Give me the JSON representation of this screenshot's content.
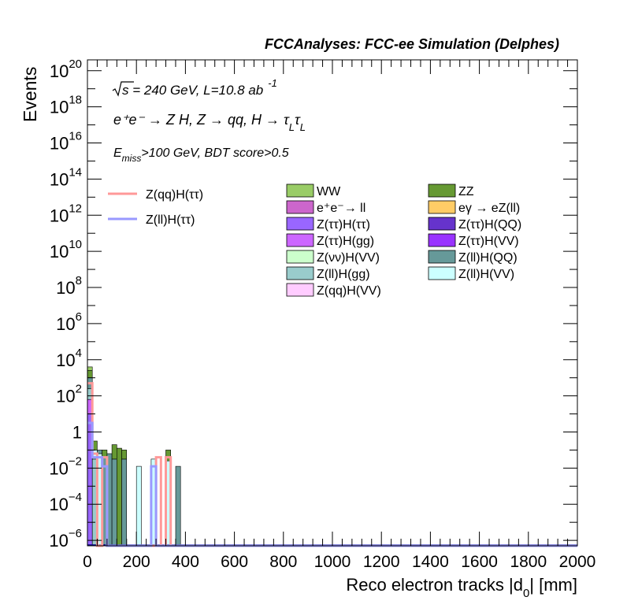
{
  "chart_data": {
    "type": "bar",
    "title": "FCCAnalyses: FCC-ee Simulation (Delphes)",
    "xlabel": "Reco electron tracks |d0| [mm]",
    "xlabel_main": "Reco electron tracks |d",
    "xlabel_sub": "0",
    "xlabel_tail": "| [mm]",
    "ylabel": "Events",
    "xlim": [
      0,
      2000
    ],
    "ylim_log10": [
      -6.3,
      20.6
    ],
    "log_y": true,
    "x_ticks": [
      0,
      200,
      400,
      600,
      800,
      1000,
      1200,
      1400,
      1600,
      1800,
      2000
    ],
    "y_ticks_exp": [
      -6,
      -4,
      -2,
      0,
      2,
      4,
      6,
      8,
      10,
      12,
      14,
      16,
      18,
      20
    ],
    "y_tick_labels": {
      "-6": "10",
      "-4": "10",
      "-2": "10",
      "0": "1",
      "2": "10",
      "4": "10",
      "6": "10",
      "8": "10",
      "10": "10",
      "12": "10",
      "14": "10",
      "16": "10",
      "18": "10",
      "20": "10"
    },
    "y_tick_exps": {
      "-6": "−6",
      "-4": "−4",
      "-2": "−2",
      "0": "",
      "2": "2",
      "4": "4",
      "6": "6",
      "8": "8",
      "10": "10",
      "12": "12",
      "14": "14",
      "16": "16",
      "18": "18",
      "20": "20"
    },
    "annotations": {
      "energy_line_a": "s = 240 GeV, L=10.8 ab",
      "energy_line_b": "-1",
      "process": "e⁺e⁻ → Z H, Z → qq, H → τ",
      "process_sub1": "L",
      "process_tau": "τ",
      "process_sub2": "L",
      "cut_pre": "E",
      "cut_sub": "miss",
      "cut_post": ">100 GeV, BDT score>0.5"
    },
    "legend_signal": [
      {
        "name": "Z(qq)H(ττ)",
        "color": "#ff9999"
      },
      {
        "name": "Z(ll)H(ττ)",
        "color": "#9999ff"
      }
    ],
    "legend_background": [
      {
        "name": "WW",
        "color": "#99cc66"
      },
      {
        "name": "ZZ",
        "color": "#669933"
      },
      {
        "name": "e⁺e⁻→ ll",
        "color": "#cc66cc"
      },
      {
        "name": "eγ → eZ(ll)",
        "color": "#ffcc66"
      },
      {
        "name": "Z(ττ)H(ττ)",
        "color": "#9966ff"
      },
      {
        "name": "Z(ττ)H(QQ)",
        "color": "#6633cc"
      },
      {
        "name": "Z(ττ)H(gg)",
        "color": "#cc66ff"
      },
      {
        "name": "Z(ττ)H(VV)",
        "color": "#9933ff"
      },
      {
        "name": "Z(νν)H(VV)",
        "color": "#ccffcc"
      },
      {
        "name": "Z(ll)H(QQ)",
        "color": "#669999"
      },
      {
        "name": "Z(ll)H(gg)",
        "color": "#99cccc"
      },
      {
        "name": "Z(ll)H(VV)",
        "color": "#ccffff"
      },
      {
        "name": "Z(qq)H(VV)",
        "color": "#ffccff"
      }
    ],
    "bin_width": 20,
    "stack_bins": [
      {
        "x": 0,
        "layers": [
          {
            "color": "#9966ff",
            "top": 1.0
          },
          {
            "color": "#cc66ff",
            "top": 1.8
          },
          {
            "color": "#99cccc",
            "top": 2.4
          },
          {
            "color": "#669999",
            "top": 3.0
          },
          {
            "color": "#669933",
            "top": 3.4
          },
          {
            "color": "#99cc66",
            "top": 3.6
          }
        ]
      },
      {
        "x": 20,
        "layers": [
          {
            "color": "#99cccc",
            "top": -1.5
          },
          {
            "color": "#ccffff",
            "top": -1.0
          },
          {
            "color": "#669933",
            "top": -0.5
          }
        ]
      },
      {
        "x": 40,
        "layers": [
          {
            "color": "#ccffff",
            "top": -1.2
          },
          {
            "color": "#669999",
            "top": -1.0
          }
        ]
      },
      {
        "x": 60,
        "layers": [
          {
            "color": "#669999",
            "top": -1.4
          },
          {
            "color": "#669933",
            "top": -1.0
          }
        ]
      },
      {
        "x": 80,
        "layers": [
          {
            "color": "#669999",
            "top": -1.2
          }
        ]
      },
      {
        "x": 100,
        "layers": [
          {
            "color": "#669999",
            "top": -1.5
          },
          {
            "color": "#669933",
            "top": -0.7
          }
        ]
      },
      {
        "x": 120,
        "layers": [
          {
            "color": "#669933",
            "top": -0.9
          }
        ]
      },
      {
        "x": 140,
        "layers": [
          {
            "color": "#669999",
            "top": -1.5
          },
          {
            "color": "#669933",
            "top": -1.0
          }
        ]
      },
      {
        "x": 200,
        "layers": [
          {
            "color": "#ccffff",
            "top": -1.9
          }
        ]
      },
      {
        "x": 260,
        "layers": [
          {
            "color": "#ccffff",
            "top": -1.5
          }
        ]
      },
      {
        "x": 320,
        "layers": [
          {
            "color": "#ccffff",
            "top": -1.6
          },
          {
            "color": "#669933",
            "top": -1.0
          }
        ]
      },
      {
        "x": 360,
        "layers": [
          {
            "color": "#669999",
            "top": -1.9
          }
        ]
      }
    ],
    "signal_qqH_steps": [
      {
        "x0": 0,
        "x1": 20,
        "v": 2.7
      },
      {
        "x0": 20,
        "x1": 40,
        "v": -1.2
      },
      {
        "x0": 40,
        "x1": 60,
        "v": -6.5
      },
      {
        "x0": 60,
        "x1": 80,
        "v": -1.4
      },
      {
        "x0": 80,
        "x1": 280,
        "v": -6.5
      },
      {
        "x0": 280,
        "x1": 300,
        "v": -1.4
      },
      {
        "x0": 300,
        "x1": 320,
        "v": -6.5
      },
      {
        "x0": 320,
        "x1": 340,
        "v": -1.4
      },
      {
        "x0": 340,
        "x1": 2000,
        "v": -6.5
      }
    ],
    "signal_llH_steps": [
      {
        "x0": 0,
        "x1": 20,
        "v": 0.5
      },
      {
        "x0": 20,
        "x1": 60,
        "v": -1.4
      },
      {
        "x0": 60,
        "x1": 80,
        "v": -1.9
      },
      {
        "x0": 80,
        "x1": 260,
        "v": -6.5
      },
      {
        "x0": 260,
        "x1": 280,
        "v": -1.9
      },
      {
        "x0": 280,
        "x1": 2000,
        "v": -6.5
      }
    ]
  }
}
